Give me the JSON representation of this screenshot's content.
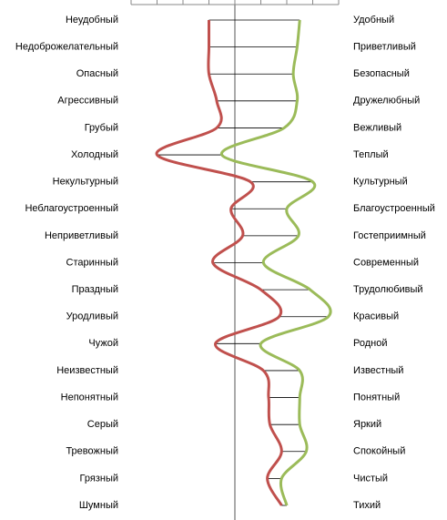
{
  "chart_data": {
    "type": "line",
    "categories": [
      "Неудобный",
      "Недоброжелательный",
      "Опасный",
      "Агрессивный",
      "Грубый",
      "Холодный",
      "Некультурный",
      "Неблагоустроенный",
      "Неприветливый",
      "Старинный",
      "Праздный",
      "Уродливый",
      "Чужой",
      "Неизвестный",
      "Непонятный",
      "Серый",
      "Тревожный",
      "Грязный",
      "Шумный"
    ],
    "right_labels": [
      "Удобный",
      "Приветливый",
      "Безопасный",
      "Дружелюбный",
      "Вежливый",
      "Теплый",
      "Культурный",
      "Благоустроенный",
      "Гостеприимный",
      "Современный",
      "Трудолюбивый",
      "Красивый",
      "Родной",
      "Известный",
      "Понятный",
      "Яркий",
      "Спокойный",
      "Чистый",
      "Тихий"
    ],
    "series": [
      {
        "color": "#c0504d",
        "values": [
          -1.0,
          -1.0,
          -1.0,
          -0.7,
          -0.7,
          -3.0,
          0.6,
          -0.15,
          0.3,
          -0.85,
          1.0,
          1.7,
          -0.75,
          1.1,
          1.3,
          1.35,
          1.8,
          1.25,
          1.8
        ]
      },
      {
        "color": "#9bbb59",
        "values": [
          2.5,
          2.4,
          2.25,
          2.4,
          1.9,
          -0.5,
          3.0,
          2.0,
          2.45,
          1.1,
          2.9,
          3.6,
          1.0,
          2.5,
          2.5,
          2.5,
          2.75,
          1.8,
          2.0
        ]
      }
    ],
    "xlim": [
      -4,
      4
    ],
    "xticks": [
      -4,
      -3,
      -2,
      -1,
      0,
      1,
      2,
      3,
      4
    ]
  }
}
